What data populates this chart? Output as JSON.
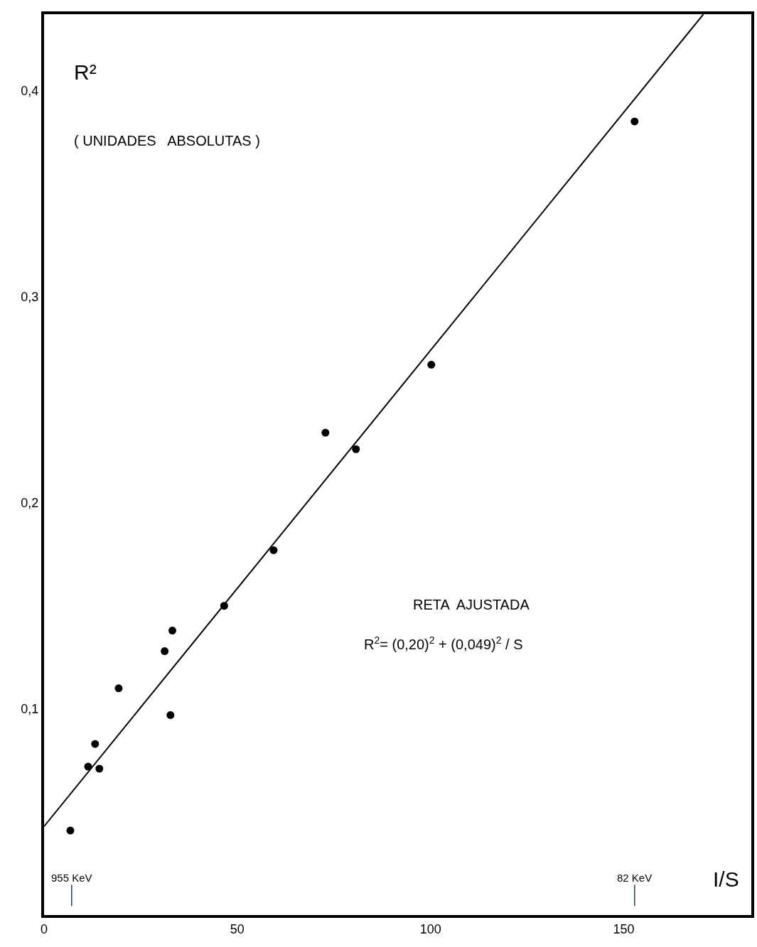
{
  "chart_data": {
    "type": "scatter",
    "xlabel": "I/S",
    "ylabel": "R²",
    "xlim": [
      0,
      183
    ],
    "ylim": [
      0,
      0.437
    ],
    "xticks": [
      0,
      50,
      100,
      150
    ],
    "yticks": [
      {
        "value": 0.1,
        "label": "0,1"
      },
      {
        "value": 0.2,
        "label": "0,2"
      },
      {
        "value": 0.3,
        "label": "0,3"
      },
      {
        "value": 0.4,
        "label": "0,4"
      }
    ],
    "marker": "circle",
    "series": [
      {
        "color": "#000000",
        "x": [
          6.8,
          11.4,
          13.2,
          14.3,
          19.3,
          31.2,
          33.2,
          32.7,
          46.6,
          59.4,
          72.8,
          80.7,
          100.2,
          152.8
        ],
        "values": [
          0.041,
          0.072,
          0.083,
          0.071,
          0.11,
          0.128,
          0.138,
          0.097,
          0.15,
          0.177,
          0.234,
          0.226,
          0.267,
          0.385
        ]
      },
      {
        "type": "line",
        "color": "#000000",
        "marker": "none",
        "line_style": "solid",
        "x": [
          0,
          170.6
        ],
        "values": [
          0.043,
          0.437
        ]
      }
    ],
    "annotations": [
      "( UNIDADES   ABSOLUTAS )",
      "RETA  AJUSTADA",
      "R$^{2}$= (0,20)$^{2}$ + (0,049)$^{2}$ / S",
      "955 KeV",
      "82 KeV"
    ]
  }
}
